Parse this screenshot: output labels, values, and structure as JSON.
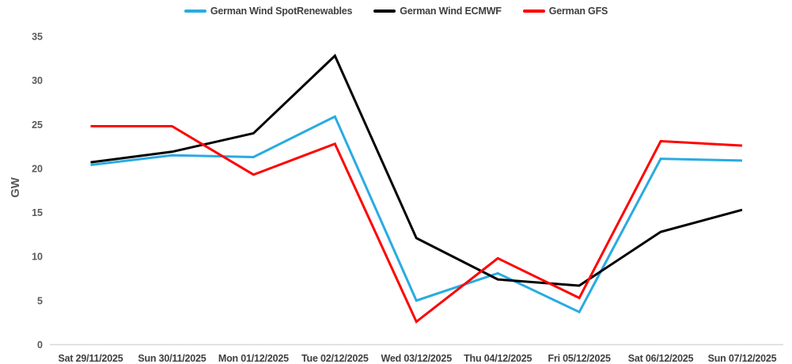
{
  "chart_data": {
    "type": "line",
    "title": "",
    "xlabel": "",
    "ylabel": "GW",
    "ylim": [
      0,
      35
    ],
    "yticks": [
      0,
      5,
      10,
      15,
      20,
      25,
      30,
      35
    ],
    "grid": false,
    "legend_position": "top-center",
    "categories": [
      "Sat 29/11/2025",
      "Sun 30/11/2025",
      "Mon 01/12/2025",
      "Tue 02/12/2025",
      "Wed 03/12/2025",
      "Thu 04/12/2025",
      "Fri 05/12/2025",
      "Sat 06/12/2025",
      "Sun 07/12/2025"
    ],
    "series": [
      {
        "name": "German Wind SpotRenewables",
        "color": "#29ABE2",
        "values": [
          20.4,
          21.5,
          21.3,
          25.9,
          5.0,
          8.1,
          3.7,
          21.1,
          20.9
        ]
      },
      {
        "name": "German Wind ECMWF",
        "color": "#000000",
        "values": [
          20.7,
          21.9,
          24.0,
          32.8,
          12.1,
          7.4,
          6.7,
          12.8,
          15.3
        ]
      },
      {
        "name": "German GFS",
        "color": "#FF0000",
        "values": [
          24.8,
          24.8,
          19.3,
          22.8,
          2.6,
          9.8,
          5.3,
          23.1,
          22.6
        ]
      }
    ]
  },
  "colors": {
    "background": "#FFFFFF",
    "axis_line": "#D9D9D9",
    "y_tick_label": "#595959",
    "axis_title": "#595959",
    "x_axis_label": "#3F3F3F",
    "legend_text": "#3F3F3F"
  }
}
